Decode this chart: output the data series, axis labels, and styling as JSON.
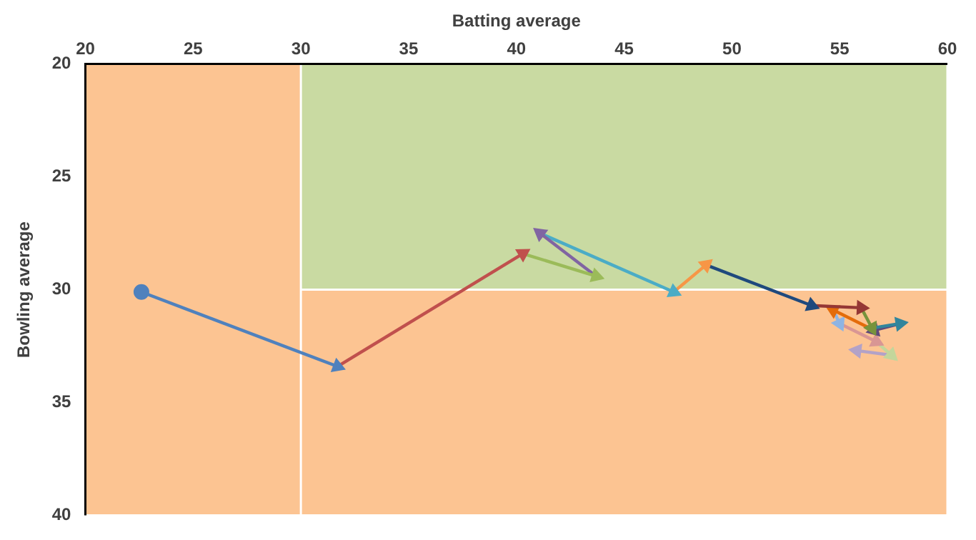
{
  "chart_data": {
    "type": "line",
    "xlabel": "Batting average",
    "ylabel": "Bowling average",
    "xlim": [
      20,
      60
    ],
    "xticks": [
      20,
      25,
      30,
      35,
      40,
      45,
      50,
      55,
      60
    ],
    "ylim": [
      40,
      20
    ],
    "yticks": [
      20,
      25,
      30,
      35,
      40
    ],
    "legend": false,
    "marker": "triangle",
    "line_style": "solid",
    "bands": [
      {
        "axis": "y",
        "from": 20,
        "to": 30,
        "color": "#c9daa2"
      },
      {
        "axis": "y",
        "from": 30,
        "to": 40,
        "color": "#fcc492"
      },
      {
        "axis": "x",
        "from": 20,
        "to": 30,
        "color": "#fcc492"
      }
    ],
    "series": [
      {
        "type": "scatter",
        "marker": "circle",
        "color": "#4f81bd",
        "x": [
          22.6
        ],
        "values": [
          30.1
        ]
      },
      {
        "color": "#4f81bd",
        "x": [
          22.6,
          31.7
        ],
        "values": [
          30.1,
          33.4
        ]
      },
      {
        "color": "#c0504d",
        "x": [
          31.7,
          40.3
        ],
        "values": [
          33.4,
          28.4
        ]
      },
      {
        "color": "#9bbb59",
        "x": [
          40.3,
          43.7
        ],
        "values": [
          28.4,
          29.4
        ]
      },
      {
        "color": "#8064a2",
        "x": [
          43.7,
          41.1
        ],
        "values": [
          29.4,
          27.5
        ]
      },
      {
        "color": "#4bacc6",
        "x": [
          41.1,
          47.3
        ],
        "values": [
          27.5,
          30.1
        ]
      },
      {
        "color": "#f79646",
        "x": [
          47.3,
          48.8
        ],
        "values": [
          30.1,
          28.9
        ]
      },
      {
        "color": "#1f497d",
        "x": [
          48.8,
          53.7
        ],
        "values": [
          28.9,
          30.7
        ]
      },
      {
        "color": "#953735",
        "x": [
          53.7,
          56.0
        ],
        "values": [
          30.7,
          30.8
        ]
      },
      {
        "color": "#77933c",
        "x": [
          56.0,
          56.5
        ],
        "values": [
          30.8,
          31.7
        ]
      },
      {
        "color": "#31859c",
        "x": [
          56.5,
          57.8
        ],
        "values": [
          31.7,
          31.5
        ]
      },
      {
        "color": "#5f497a",
        "x": [
          57.8,
          56.6
        ],
        "values": [
          31.5,
          31.8
        ]
      },
      {
        "color": "#e46c0a",
        "x": [
          56.6,
          54.7
        ],
        "values": [
          31.8,
          30.9
        ]
      },
      {
        "color": "#8eb4e3",
        "x": [
          54.7,
          55.0
        ],
        "values": [
          30.9,
          31.5
        ]
      },
      {
        "color": "#d99694",
        "x": [
          55.0,
          56.7
        ],
        "values": [
          31.5,
          32.3
        ]
      },
      {
        "color": "#c3d69b",
        "x": [
          56.7,
          57.4
        ],
        "values": [
          32.3,
          32.9
        ]
      },
      {
        "color": "#b3a2c7",
        "x": [
          57.4,
          55.8
        ],
        "values": [
          32.9,
          32.7
        ]
      }
    ]
  }
}
